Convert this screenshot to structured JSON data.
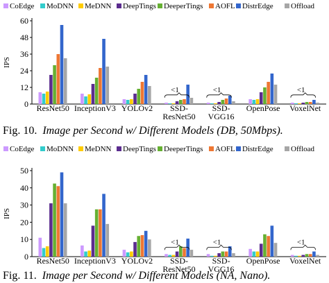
{
  "colors": [
    "#cc99ff",
    "#33cccc",
    "#ffcc00",
    "#5b2c8f",
    "#66b032",
    "#ee7733",
    "#3366cc",
    "#a6a6a6"
  ],
  "chart_data": [
    {
      "type": "bar",
      "ylabel": "IPS",
      "ylim": [
        0,
        60
      ],
      "yticks": [
        0,
        12,
        24,
        36,
        48,
        60
      ],
      "grid": false,
      "legend": "top",
      "categories": [
        "ResNet50",
        "InceptionV3",
        "YOLOv2",
        "SSD-\nResNet50",
        "SSD-\nVGG16",
        "OpenPose",
        "VoxelNet"
      ],
      "series": [
        {
          "name": "CoEdge",
          "values": [
            8.5,
            7.5,
            3.5,
            1.0,
            1.0,
            3.5,
            1.0
          ]
        },
        {
          "name": "MoDNN",
          "values": [
            7.5,
            5.5,
            3.0,
            0.5,
            0.5,
            3.0,
            0.5
          ]
        },
        {
          "name": "MeDNN",
          "values": [
            9.0,
            7.0,
            3.5,
            0.5,
            0.5,
            3.5,
            0.5
          ]
        },
        {
          "name": "DeepTings",
          "values": [
            21,
            14.5,
            7.5,
            2.0,
            1.5,
            8.5,
            1.0
          ]
        },
        {
          "name": "DeeperTings",
          "values": [
            28,
            19,
            11,
            3.0,
            3.0,
            12,
            1.5
          ]
        },
        {
          "name": "AOFL",
          "values": [
            36,
            26,
            16,
            3.5,
            4.0,
            16,
            1.5
          ]
        },
        {
          "name": "DistrEdge",
          "values": [
            57,
            47,
            21,
            14,
            6.0,
            22,
            3.0
          ]
        },
        {
          "name": "Offload",
          "values": [
            33,
            27,
            13,
            4.5,
            2.0,
            14,
            1.0
          ]
        }
      ],
      "annotations": [
        "<1",
        "<1",
        "<1"
      ],
      "caption_prefix": "Fig. 10.",
      "caption_text": "Image per Second w/ Different Models (DB, 50Mbps)."
    },
    {
      "type": "bar",
      "ylabel": "IPS",
      "ylim": [
        0,
        50
      ],
      "yticks": [
        0,
        10,
        20,
        30,
        40,
        50
      ],
      "grid": false,
      "legend": "top",
      "categories": [
        "ResNet50",
        "InceptionV3",
        "YOLOv2",
        "SSD-\nResNet50",
        "SSD-\nVGG16",
        "OpenPose",
        "VoxelNet"
      ],
      "series": [
        {
          "name": "CoEdge",
          "values": [
            11,
            6.5,
            4.0,
            1.5,
            1.5,
            4.5,
            1.0
          ]
        },
        {
          "name": "MoDNN",
          "values": [
            5.0,
            3.0,
            2.5,
            1.0,
            0.5,
            3.0,
            0.5
          ]
        },
        {
          "name": "MeDNN",
          "values": [
            6.0,
            3.5,
            3.0,
            1.0,
            0.5,
            3.0,
            0.5
          ]
        },
        {
          "name": "DeepTings",
          "values": [
            31,
            18,
            8.5,
            3.0,
            2.0,
            7.5,
            1.0
          ]
        },
        {
          "name": "DeeperTings",
          "values": [
            42.5,
            27.5,
            12,
            6.0,
            3.0,
            13,
            1.5
          ]
        },
        {
          "name": "AOFL",
          "values": [
            41,
            27.5,
            12.5,
            5.0,
            3.0,
            12,
            1.5
          ]
        },
        {
          "name": "DistrEdge",
          "values": [
            49,
            36.5,
            15,
            10.5,
            6.0,
            18,
            3.0
          ]
        },
        {
          "name": "Offload",
          "values": [
            31,
            19,
            10,
            4.0,
            2.0,
            8.0,
            1.0
          ]
        }
      ],
      "annotations": [
        "<1",
        "<1",
        "<1"
      ],
      "caption_prefix": "Fig. 11.",
      "caption_text": "Image per Second w/ Different Models (NA, Nano)."
    }
  ]
}
